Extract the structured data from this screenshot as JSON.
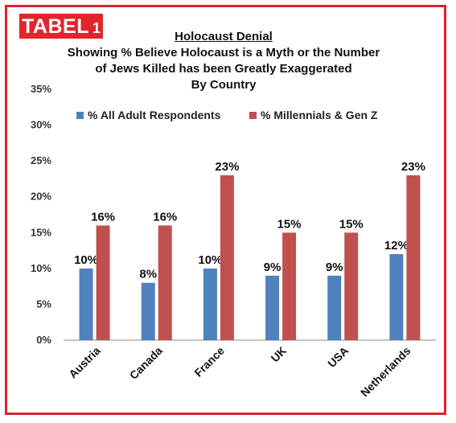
{
  "badge": {
    "word": "TABEL",
    "number": "1"
  },
  "title": {
    "line1": "Holocaust Denial",
    "line2": "Showing % Believe Holocaust is a Myth or the Number",
    "line3": "of Jews Killed has been Greatly Exaggerated",
    "line4": "By Country"
  },
  "colors": {
    "frame": "#d7262b",
    "badge": "#e3242b"
  },
  "chart_data": {
    "type": "bar",
    "categories": [
      "Austria",
      "Canada",
      "France",
      "UK",
      "USA",
      "Netherlands"
    ],
    "series": [
      {
        "name": "% All Adult Respondents",
        "color": "#4f81bd",
        "values": [
          10,
          8,
          10,
          9,
          9,
          12
        ],
        "labels": [
          "10%",
          "8%",
          "10%",
          "9%",
          "9%",
          "12%"
        ]
      },
      {
        "name": "% Millennials & Gen Z",
        "color": "#c0504d",
        "values": [
          16,
          16,
          23,
          15,
          15,
          23
        ],
        "labels": [
          "16%",
          "16%",
          "23%",
          "15%",
          "15%",
          "23%"
        ]
      }
    ],
    "title": "Holocaust Denial",
    "xlabel": "",
    "ylabel": "",
    "ylim": [
      0,
      35
    ],
    "yticks": [
      0,
      5,
      10,
      15,
      20,
      25,
      30,
      35
    ],
    "ytick_labels": [
      "0%",
      "5%",
      "10%",
      "15%",
      "20%",
      "25%",
      "30%",
      "35%"
    ],
    "grid": false,
    "legend_position": "top"
  }
}
